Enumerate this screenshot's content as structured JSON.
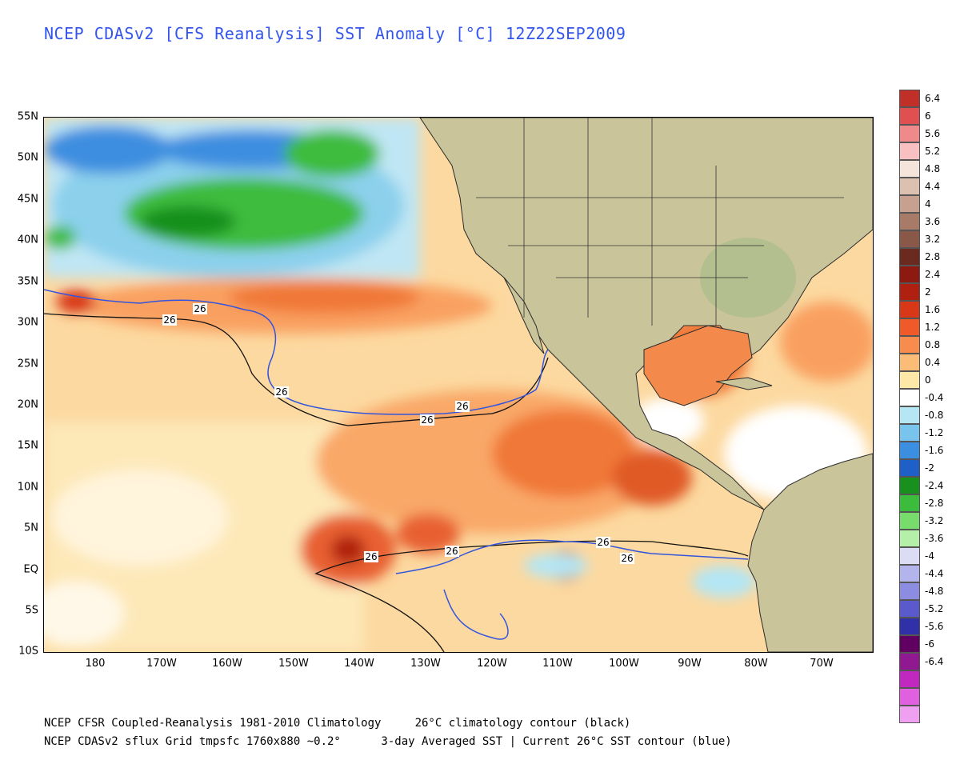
{
  "title": "NCEP CDASv2 [CFS Reanalysis] SST Anomaly [°C] 12Z22SEP2009",
  "lat_labels": [
    "55N",
    "50N",
    "45N",
    "40N",
    "35N",
    "30N",
    "25N",
    "20N",
    "15N",
    "10N",
    "5N",
    "EQ",
    "5S",
    "10S"
  ],
  "lon_labels": [
    "180",
    "170W",
    "160W",
    "150W",
    "140W",
    "130W",
    "120W",
    "110W",
    "100W",
    "90W",
    "80W",
    "70W"
  ],
  "colorbar": [
    {
      "label": "6.4",
      "color": "#c03028"
    },
    {
      "label": "6",
      "color": "#e05050"
    },
    {
      "label": "5.6",
      "color": "#f08a8a"
    },
    {
      "label": "5.2",
      "color": "#f8c0c0"
    },
    {
      "label": "4.8",
      "color": "#f4e4dc"
    },
    {
      "label": "4.4",
      "color": "#dcc0b0"
    },
    {
      "label": "4",
      "color": "#c8a090"
    },
    {
      "label": "3.6",
      "color": "#a87a68"
    },
    {
      "label": "3.2",
      "color": "#8a5848"
    },
    {
      "label": "2.8",
      "color": "#6a2a20"
    },
    {
      "label": "2.4",
      "color": "#8c1a10"
    },
    {
      "label": "2",
      "color": "#b02010"
    },
    {
      "label": "1.6",
      "color": "#d83818"
    },
    {
      "label": "1.2",
      "color": "#f05a28"
    },
    {
      "label": "0.8",
      "color": "#f88c4c"
    },
    {
      "label": "0.4",
      "color": "#fbbc78"
    },
    {
      "label": "0",
      "color": "#fde8a8"
    },
    {
      "label": "-0.4",
      "color": "#ffffff"
    },
    {
      "label": "-0.8",
      "color": "#b4e6f4"
    },
    {
      "label": "-1.2",
      "color": "#78c4ec"
    },
    {
      "label": "-1.6",
      "color": "#3c8ee0"
    },
    {
      "label": "-2",
      "color": "#1e60c8"
    },
    {
      "label": "-2.4",
      "color": "#18901e"
    },
    {
      "label": "-2.8",
      "color": "#3cbc3c"
    },
    {
      "label": "-3.2",
      "color": "#78dc6c"
    },
    {
      "label": "-3.6",
      "color": "#b4f0a8"
    },
    {
      "label": "-4",
      "color": "#dcdcf4"
    },
    {
      "label": "-4.4",
      "color": "#b4b4ec"
    },
    {
      "label": "-4.8",
      "color": "#8c8ce0"
    },
    {
      "label": "-5.2",
      "color": "#5a5acc"
    },
    {
      "label": "-5.6",
      "color": "#3030a8"
    },
    {
      "label": "-6",
      "color": "#600060"
    },
    {
      "label": "-6.4",
      "color": "#901890"
    },
    {
      "label": "",
      "color": "#c028c0"
    },
    {
      "label": "",
      "color": "#e060e0"
    },
    {
      "label": "",
      "color": "#f0a0f0"
    }
  ],
  "contour_labels": [
    "26",
    "26",
    "26",
    "26",
    "26",
    "26",
    "26",
    "26",
    "26"
  ],
  "footer": {
    "line1": "NCEP CFSR Coupled-Reanalysis 1981-2010 Climatology     26°C climatology contour (black)",
    "line2": "NCEP CDASv2 sflux Grid tmpsfc 1760x880 ~0.2°      3-day Averaged SST | Current 26°C SST contour (blue)"
  }
}
